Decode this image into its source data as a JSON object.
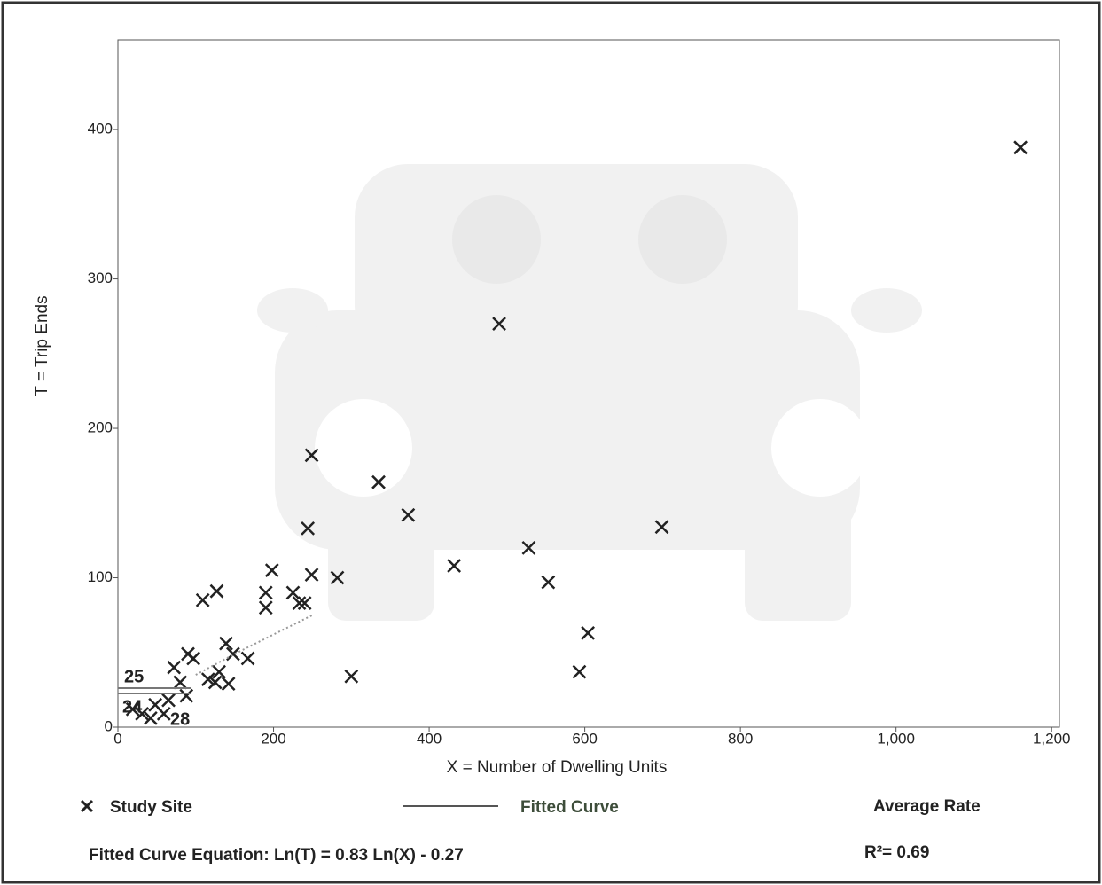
{
  "chart_data": {
    "type": "scatter",
    "xlabel": "X = Number of Dwelling Units",
    "ylabel": "T = Trip Ends",
    "xlim": [
      0,
      1210
    ],
    "ylim": [
      0,
      460
    ],
    "xticks": [
      0,
      200,
      400,
      600,
      800,
      {
        "value": 1000,
        "label": "1,000"
      },
      {
        "value": 1200,
        "label": "1,200"
      }
    ],
    "yticks": [
      0,
      100,
      200,
      300,
      400
    ],
    "series": [
      {
        "name": "Study Site",
        "color": "#222222",
        "x": [
          1160,
          490,
          249,
          335,
          373,
          244,
          699,
          528,
          432,
          553,
          604,
          593,
          300,
          198,
          249,
          282,
          190,
          225,
          127,
          109,
          190,
          233,
          240,
          139,
          148,
          167,
          90,
          97,
          130,
          116,
          125,
          142,
          72,
          80,
          88,
          19,
          31,
          48,
          59,
          65,
          42
        ],
        "values": [
          388,
          270,
          182,
          164,
          142,
          133,
          134,
          120,
          108,
          97,
          63,
          37,
          34,
          105,
          102,
          100,
          90,
          90,
          91,
          85,
          80,
          83,
          83,
          56,
          49,
          46,
          49,
          46,
          37,
          32,
          30,
          29,
          40,
          30,
          21,
          12,
          9,
          15,
          9,
          18,
          6
        ]
      },
      {
        "name": "Fitted Curve",
        "color": "#999999",
        "x": [
          100,
          150,
          200,
          250
        ],
        "values": [
          35,
          49,
          62,
          75
        ]
      }
    ],
    "average_rate_legend": "Average Rate",
    "annotations": [
      "25",
      "24",
      "28"
    ],
    "equation": "Fitted Curve Equation: Ln(T) = 0.83 Ln(X) - 0.27",
    "r_squared": "R²= 0.69"
  }
}
